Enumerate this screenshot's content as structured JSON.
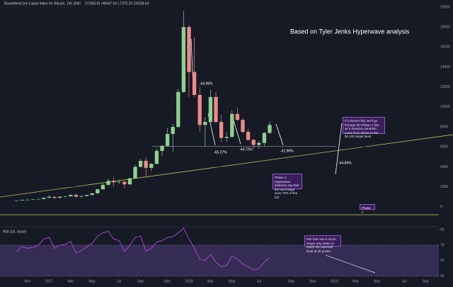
{
  "header": {
    "symbol": "BraveNewCoin Liquid Index for Bitcoin, 1W, BNC",
    "ohlc": "O7393.91 H8447.54 L7375.20 C8338.64"
  },
  "chart_data": {
    "type": "candlestick",
    "title": "Based on Tyler Jenks Hyperwave analysis",
    "categories": [
      null,
      null,
      "Nov",
      null,
      null,
      null,
      "2017",
      null,
      null,
      null,
      "Mar",
      null,
      null,
      null,
      "May",
      null,
      null,
      null,
      null,
      "Jul",
      null,
      null,
      null,
      "Sep",
      null,
      null,
      null,
      null,
      "Nov",
      null,
      null,
      null,
      "2018",
      null,
      null,
      null,
      "Mar",
      null,
      null,
      null,
      "May",
      null,
      null,
      null,
      null,
      "Jul",
      null,
      null,
      null,
      null,
      null,
      "Sep",
      null,
      null,
      null,
      "Nov",
      null,
      null,
      null,
      "2019",
      null,
      null,
      null,
      "Mar",
      null,
      null,
      null,
      "May",
      null,
      null,
      null,
      null,
      "Jul",
      null,
      null,
      null,
      "Sep",
      null
    ],
    "open": [
      610,
      640,
      700,
      705,
      740,
      780,
      900,
      1000,
      900,
      1010,
      1050,
      1190,
      1020,
      1080,
      1180,
      1350,
      1750,
      2200,
      2600,
      2450,
      2500,
      2250,
      2850,
      4000,
      4600,
      3900,
      4300,
      5600,
      6100,
      7300,
      8000,
      11500,
      18000,
      13500,
      11200,
      8200,
      8500,
      11000,
      8500,
      6900,
      7000,
      9300,
      8700,
      7500,
      6700,
      6200,
      6400,
      7400,
      null,
      null,
      null,
      null,
      null,
      null,
      null,
      null,
      null,
      null,
      null,
      null,
      null,
      null,
      null,
      null,
      null,
      null,
      null,
      null,
      null,
      null,
      null,
      null,
      null,
      null,
      null,
      null,
      null,
      null
    ],
    "high": [
      650,
      720,
      760,
      760,
      790,
      920,
      1130,
      1010,
      1030,
      1060,
      1200,
      1290,
      1100,
      1200,
      1360,
      1800,
      2300,
      2800,
      2980,
      2700,
      2600,
      2900,
      4200,
      4800,
      4950,
      4400,
      5800,
      6200,
      7900,
      8300,
      11800,
      19600,
      18200,
      17000,
      12000,
      9000,
      11700,
      11500,
      9200,
      7500,
      9700,
      9900,
      8900,
      7800,
      6800,
      6600,
      7500,
      8500,
      null,
      null,
      null,
      null,
      null,
      null,
      null,
      null,
      null,
      null,
      null,
      null,
      null,
      null,
      null,
      null,
      null,
      null,
      null,
      null,
      null,
      null,
      null,
      null,
      null,
      null,
      null,
      null,
      null,
      null
    ],
    "low": [
      600,
      630,
      690,
      690,
      730,
      770,
      890,
      780,
      880,
      940,
      1040,
      940,
      900,
      1070,
      1170,
      1340,
      1740,
      2150,
      2100,
      2300,
      1830,
      2200,
      2840,
      3950,
      2950,
      3600,
      4250,
      5100,
      6050,
      5500,
      7900,
      11400,
      11000,
      11000,
      7500,
      6000,
      8400,
      8400,
      6500,
      6500,
      6950,
      8600,
      7400,
      6600,
      5800,
      5800,
      6100,
      7300,
      null,
      null,
      null,
      null,
      null,
      null,
      null,
      null,
      null,
      null,
      null,
      null,
      null,
      null,
      null,
      null,
      null,
      null,
      null,
      null,
      null,
      null,
      null,
      null,
      null,
      null,
      null,
      null,
      null,
      null
    ],
    "close": [
      640,
      700,
      705,
      740,
      780,
      900,
      1000,
      900,
      1010,
      1050,
      1190,
      1020,
      1080,
      1180,
      1350,
      1750,
      2200,
      2600,
      2450,
      2500,
      2250,
      2850,
      4000,
      4600,
      3900,
      4300,
      5600,
      6100,
      7300,
      8000,
      11500,
      18000,
      13500,
      11200,
      8200,
      8500,
      11000,
      8500,
      6900,
      7000,
      9300,
      8700,
      7500,
      6700,
      6200,
      6400,
      7400,
      8200,
      null,
      null,
      null,
      null,
      null,
      null,
      null,
      null,
      null,
      null,
      null,
      null,
      null,
      null,
      null,
      null,
      null,
      null,
      null,
      null,
      null,
      null,
      null,
      null,
      null,
      null,
      null,
      null,
      null,
      null
    ],
    "up_color": "#8fd18f",
    "down_color": "#ef8a8a",
    "ylim": [
      -2000,
      20000
    ],
    "yticks": [
      0,
      2000,
      4000,
      6000,
      8000,
      10000,
      12000,
      14000,
      16000,
      18000,
      20000
    ],
    "annotations": [
      "-64.96%",
      "-65.27%",
      "-44.72%",
      "-41.96%",
      "-44.84%"
    ],
    "notes": [
      "If it doesn't fail, we'll go through the Phase 3 line w/ a massive parabolic move from above to the $4,100 target level",
      "Phase 4 Hyperwave statistics say that the next stage sees 70% of the fall.",
      "Phase 1"
    ],
    "rsi": {
      "title": "RSI (14, close)",
      "color": "#b04cd8",
      "band": [
        30,
        70
      ],
      "ylim": [
        26,
        92
      ],
      "yticks": [
        30,
        50,
        70,
        90
      ],
      "note": "RSI has now a much longer way down to reach the oversold level at 30 points.",
      "values": [
        62,
        68,
        66,
        67,
        70,
        78,
        80,
        66,
        70,
        71,
        75,
        60,
        63,
        68,
        72,
        82,
        86,
        88,
        78,
        76,
        62,
        70,
        80,
        82,
        62,
        66,
        74,
        76,
        80,
        81,
        86,
        92,
        78,
        66,
        52,
        50,
        58,
        48,
        42,
        44,
        56,
        52,
        46,
        42,
        38,
        40,
        48,
        54,
        null,
        null,
        null,
        null,
        null,
        null,
        null,
        null,
        null,
        null,
        null,
        null,
        null,
        null,
        null,
        null,
        null,
        null,
        null,
        null,
        null,
        null,
        null,
        null,
        null,
        null,
        null,
        null,
        null,
        null
      ]
    }
  }
}
